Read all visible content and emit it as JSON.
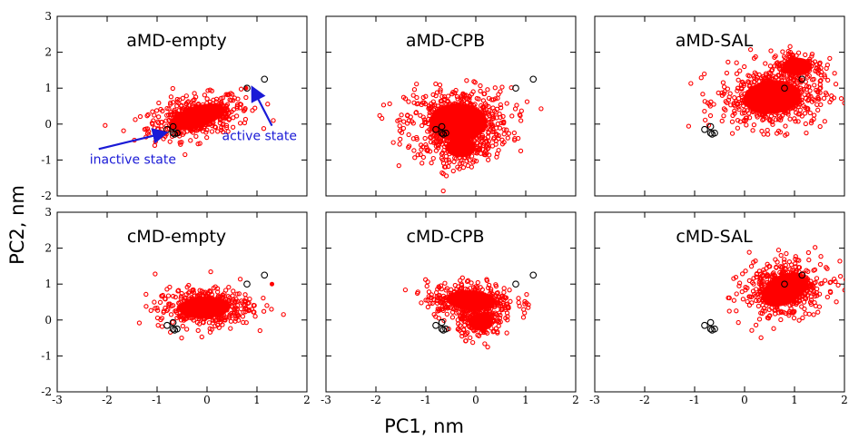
{
  "chart_data": {
    "type": "scatter",
    "xlabel": "PC1, nm",
    "ylabel": "PC2, nm",
    "xlim": [
      -3,
      2
    ],
    "ylim": [
      -2,
      3
    ],
    "x_ticks": [
      -3,
      -2,
      -1,
      0,
      1,
      2
    ],
    "y_ticks": [
      -2,
      -1,
      0,
      1,
      2,
      3
    ],
    "grid": false,
    "marker_color": "#ff0000",
    "reference_marker_color": "#000000",
    "reference_points": [
      {
        "x": 0.8,
        "y": 1.0
      },
      {
        "x": 1.15,
        "y": 1.25
      },
      {
        "x": -0.8,
        "y": -0.15
      },
      {
        "x": -0.68,
        "y": -0.07
      },
      {
        "x": -0.68,
        "y": -0.25
      },
      {
        "x": -0.65,
        "y": -0.28
      },
      {
        "x": -0.6,
        "y": -0.25
      }
    ],
    "panels": [
      {
        "title": "aMD-empty",
        "clusters": [
          {
            "cx": -0.2,
            "cy": 0.2,
            "rx": 1.05,
            "ry": 0.55,
            "tilt": 0.3,
            "n": 420
          }
        ],
        "isolated_points": [
          {
            "x": 0.78,
            "y": 1.0
          }
        ],
        "annotations": [
          {
            "text": "inactive state",
            "x": -2.35,
            "y": -1.1,
            "arrow_to_x": -0.85,
            "arrow_to_y": -0.25
          },
          {
            "text": "active state",
            "x": 0.3,
            "y": -0.45,
            "arrow_to_x": 0.92,
            "arrow_to_y": 0.98
          }
        ]
      },
      {
        "title": "aMD-CPB",
        "clusters": [
          {
            "cx": -0.35,
            "cy": 0.05,
            "rx": 1.05,
            "ry": 0.95,
            "tilt": 0.0,
            "n": 620
          },
          {
            "cx": -0.3,
            "cy": -0.65,
            "rx": 0.55,
            "ry": 0.5,
            "tilt": 0.0,
            "n": 160
          }
        ],
        "isolated_points": [],
        "annotations": []
      },
      {
        "title": "aMD-SAL",
        "clusters": [
          {
            "cx": 0.55,
            "cy": 0.75,
            "rx": 1.05,
            "ry": 0.85,
            "tilt": 0.1,
            "n": 560
          },
          {
            "cx": 1.05,
            "cy": 1.6,
            "rx": 0.55,
            "ry": 0.45,
            "tilt": 0.0,
            "n": 140
          }
        ],
        "isolated_points": [],
        "annotations": []
      },
      {
        "title": "cMD-empty",
        "clusters": [
          {
            "cx": -0.05,
            "cy": 0.35,
            "rx": 0.95,
            "ry": 0.55,
            "tilt": 0.05,
            "n": 420
          }
        ],
        "isolated_points": [
          {
            "x": 1.3,
            "y": 1.0
          }
        ],
        "annotations": []
      },
      {
        "title": "cMD-CPB",
        "clusters": [
          {
            "cx": -0.1,
            "cy": 0.55,
            "rx": 0.9,
            "ry": 0.5,
            "tilt": -0.05,
            "n": 360
          },
          {
            "cx": 0.1,
            "cy": -0.05,
            "rx": 0.45,
            "ry": 0.45,
            "tilt": 0.0,
            "n": 170
          }
        ],
        "isolated_points": [],
        "annotations": []
      },
      {
        "title": "cMD-SAL",
        "clusters": [
          {
            "cx": 0.8,
            "cy": 0.85,
            "rx": 0.9,
            "ry": 0.75,
            "tilt": 0.45,
            "n": 480
          }
        ],
        "isolated_points": [],
        "annotations": []
      }
    ]
  }
}
